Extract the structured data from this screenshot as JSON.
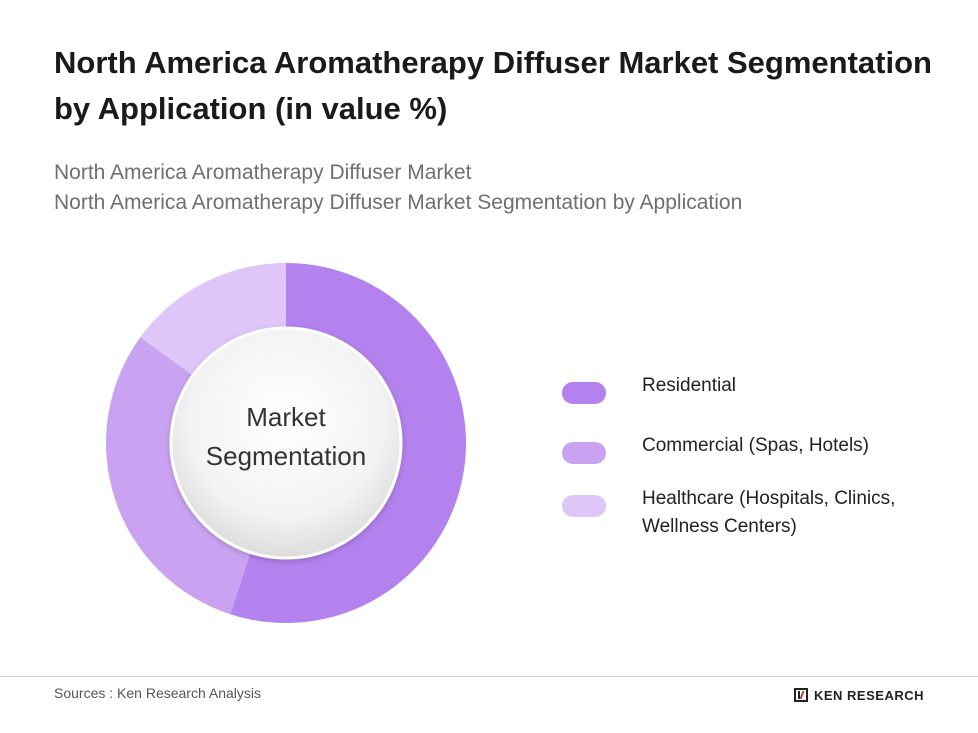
{
  "header": {
    "title": "North America Aromatherapy Diffuser Market Segmentation by Application (in value %)",
    "subtitle_lines": [
      "North America Aromatherapy Diffuser Market",
      "North America Aromatherapy Diffuser Market Segmentation by Application"
    ]
  },
  "chart_data": {
    "type": "pie",
    "style": "donut",
    "center_label": [
      "Market",
      "Segmentation"
    ],
    "categories": [
      "Residential",
      "Commercial (Spas, Hotels)",
      "Healthcare (Hospitals, Clinics, Wellness Centers)"
    ],
    "legend_lines": [
      [
        "Residential"
      ],
      [
        "Commercial (Spas, Hotels)"
      ],
      [
        "Healthcare (Hospitals, Clinics,",
        "Wellness Centers)"
      ]
    ],
    "values": [
      55,
      30,
      15
    ],
    "colors": [
      "#b382ee",
      "#c9a3f1",
      "#dfc6f8"
    ],
    "legend_position": "right"
  },
  "footer": {
    "source": "Sources : Ken Research Analysis",
    "brand": "KEN RESEARCH"
  }
}
